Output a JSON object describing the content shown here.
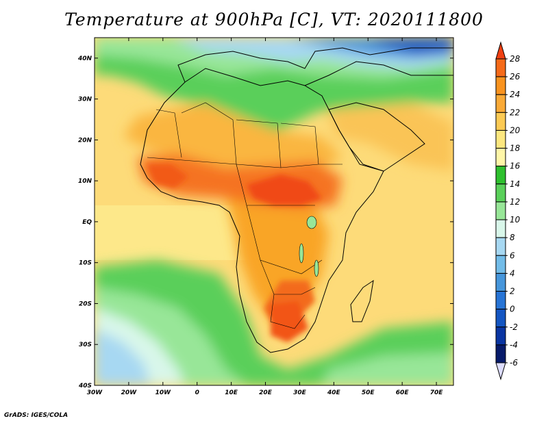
{
  "title": "Temperature at 900hPa [C], VT: 2020111800",
  "credit": "GrADS: IGES/COLA",
  "map": {
    "region": "Africa",
    "lon_range": [
      -30,
      75
    ],
    "lat_range": [
      -40,
      45
    ],
    "lon_ticks": [
      "30W",
      "20W",
      "10W",
      "0",
      "10E",
      "20E",
      "30E",
      "40E",
      "50E",
      "60E",
      "70E"
    ],
    "lat_ticks": [
      "40S",
      "30S",
      "20S",
      "10S",
      "EQ",
      "10N",
      "20N",
      "30N",
      "40N"
    ],
    "ocean_color": "#ffd96b",
    "hot_core_color": "#f24a13",
    "cold_color": "#1a57d6"
  },
  "colorbar": {
    "labels": [
      "28",
      "26",
      "24",
      "22",
      "20",
      "18",
      "16",
      "14",
      "12",
      "10",
      "8",
      "6",
      "4",
      "2",
      "0",
      "-2",
      "-4",
      "-6"
    ],
    "colors": [
      "#f04012",
      "#f56a19",
      "#f9931f",
      "#faaa37",
      "#fcca54",
      "#fde77f",
      "#fff6a8",
      "#2ec02e",
      "#5ad05a",
      "#98e698",
      "#d9f7ea",
      "#a7d8f2",
      "#72bce8",
      "#4696db",
      "#2774d5",
      "#1456c2",
      "#0a35a2",
      "#071b6a",
      "#ddddff"
    ]
  }
}
